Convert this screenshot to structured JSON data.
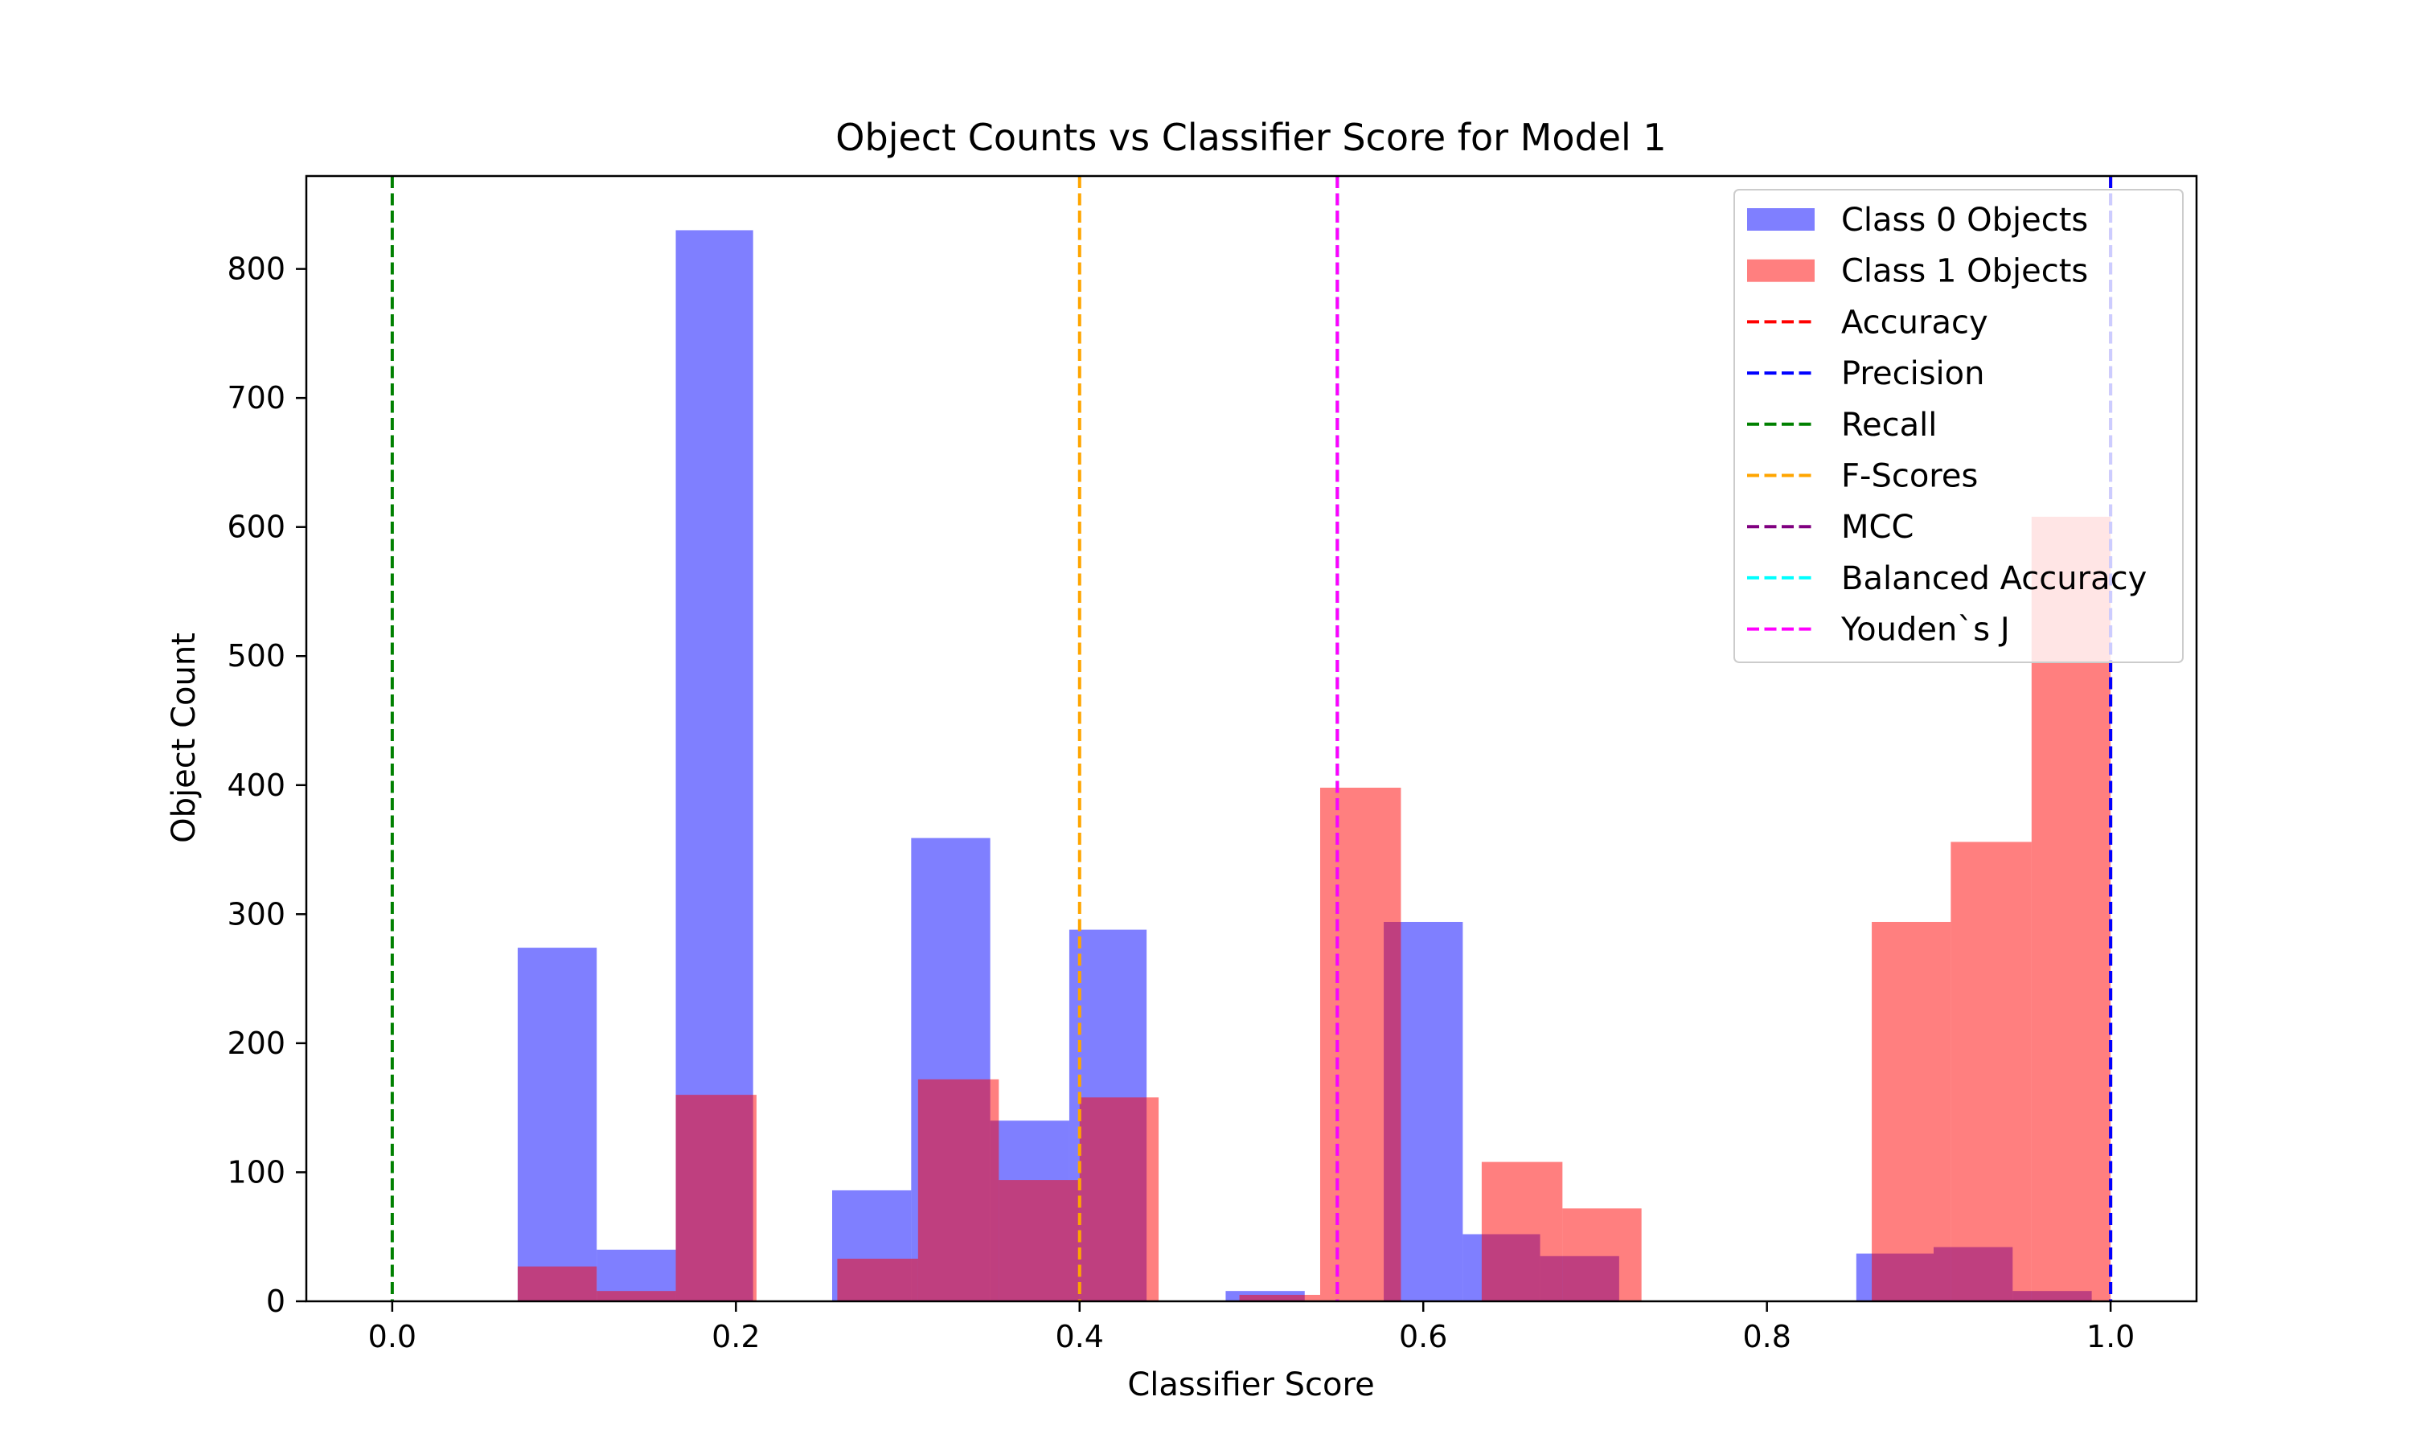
{
  "chart_data": {
    "type": "histogram",
    "title": "Object Counts vs Classifier Score for Model 1",
    "xlabel": "Classifier Score",
    "ylabel": "Object Count",
    "xlim": [
      -0.05,
      1.05
    ],
    "ylim": [
      0,
      872
    ],
    "xticks": [
      0.0,
      0.2,
      0.4,
      0.6,
      0.8,
      1.0
    ],
    "xtick_labels": [
      "0.0",
      "0.2",
      "0.4",
      "0.6",
      "0.8",
      "1.0"
    ],
    "yticks": [
      0,
      100,
      200,
      300,
      400,
      500,
      600,
      700,
      800
    ],
    "ytick_labels": [
      "0",
      "100",
      "200",
      "300",
      "400",
      "500",
      "600",
      "700",
      "800"
    ],
    "grid": false,
    "legend_position": "upper right",
    "series": [
      {
        "name": "Class 0 Objects",
        "color": "#0000ff",
        "alpha": 0.5,
        "bins": [
          {
            "x0": 0.073,
            "x1": 0.119,
            "value": 274
          },
          {
            "x0": 0.119,
            "x1": 0.165,
            "value": 40
          },
          {
            "x0": 0.165,
            "x1": 0.21,
            "value": 830
          },
          {
            "x0": 0.256,
            "x1": 0.302,
            "value": 86
          },
          {
            "x0": 0.302,
            "x1": 0.348,
            "value": 359
          },
          {
            "x0": 0.348,
            "x1": 0.394,
            "value": 140
          },
          {
            "x0": 0.394,
            "x1": 0.439,
            "value": 288
          },
          {
            "x0": 0.485,
            "x1": 0.531,
            "value": 8
          },
          {
            "x0": 0.577,
            "x1": 0.623,
            "value": 294
          },
          {
            "x0": 0.623,
            "x1": 0.668,
            "value": 52
          },
          {
            "x0": 0.668,
            "x1": 0.714,
            "value": 35
          },
          {
            "x0": 0.852,
            "x1": 0.897,
            "value": 37
          },
          {
            "x0": 0.897,
            "x1": 0.943,
            "value": 42
          },
          {
            "x0": 0.943,
            "x1": 0.989,
            "value": 8
          }
        ]
      },
      {
        "name": "Class 1 Objects",
        "color": "#ff0000",
        "alpha": 0.5,
        "bins": [
          {
            "x0": 0.073,
            "x1": 0.119,
            "value": 27
          },
          {
            "x0": 0.119,
            "x1": 0.165,
            "value": 8
          },
          {
            "x0": 0.165,
            "x1": 0.212,
            "value": 160
          },
          {
            "x0": 0.259,
            "x1": 0.306,
            "value": 33
          },
          {
            "x0": 0.306,
            "x1": 0.353,
            "value": 172
          },
          {
            "x0": 0.353,
            "x1": 0.4,
            "value": 94
          },
          {
            "x0": 0.4,
            "x1": 0.446,
            "value": 158
          },
          {
            "x0": 0.493,
            "x1": 0.54,
            "value": 5
          },
          {
            "x0": 0.54,
            "x1": 0.587,
            "value": 398
          },
          {
            "x0": 0.634,
            "x1": 0.681,
            "value": 108
          },
          {
            "x0": 0.681,
            "x1": 0.727,
            "value": 72
          },
          {
            "x0": 0.861,
            "x1": 0.907,
            "value": 294
          },
          {
            "x0": 0.907,
            "x1": 0.954,
            "value": 356
          },
          {
            "x0": 0.954,
            "x1": 1.0,
            "value": 608
          }
        ]
      }
    ],
    "thresholds": [
      {
        "name": "Accuracy",
        "color": "#ff0000",
        "x": 1.0
      },
      {
        "name": "Precision",
        "color": "#0000ff",
        "x": 1.0
      },
      {
        "name": "Recall",
        "color": "#008000",
        "x": 0.0
      },
      {
        "name": "F-Scores",
        "color": "#ffa500",
        "x": 0.4
      },
      {
        "name": "MCC",
        "color": "#800080",
        "x": 0.55
      },
      {
        "name": "Balanced Accuracy",
        "color": "#00ffff",
        "x": 0.55
      },
      {
        "name": "Youden`s J",
        "color": "#ff00ff",
        "x": 0.55
      }
    ],
    "threshold_draw_order": [
      "Accuracy",
      "MCC",
      "Balanced Accuracy",
      "Recall",
      "F-Scores",
      "Youden`s J",
      "Precision"
    ]
  }
}
